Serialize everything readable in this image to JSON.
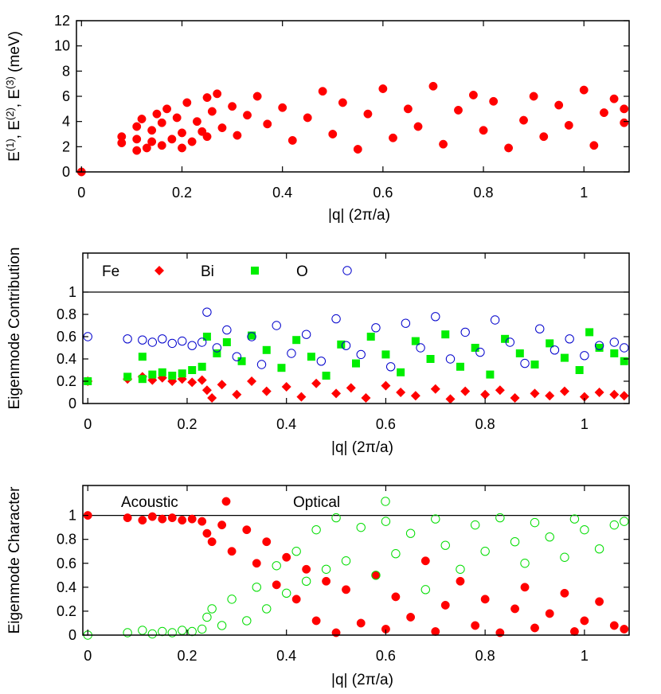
{
  "figure": {
    "background": "#ffffff"
  },
  "chart_data": [
    {
      "type": "scatter",
      "title": "",
      "xlabel": "|q| (2π/a)",
      "ylabel": "E(1), E(2), E(3) (meV)",
      "xlim": [
        -0.01,
        1.09
      ],
      "ylim": [
        0,
        12
      ],
      "x_ticks": [
        0,
        0.2,
        0.4,
        0.6,
        0.8,
        1
      ],
      "x_tick_labels": [
        "0",
        "0.2",
        "0.4",
        "0.6",
        "0.8",
        "1"
      ],
      "y_ticks": [
        0,
        2,
        4,
        6,
        8,
        10,
        12
      ],
      "y_tick_labels": [
        "0",
        "2",
        "4",
        "6",
        "8",
        "10",
        "12"
      ],
      "grid": false,
      "legend": "none",
      "series": [
        {
          "color": "#ff0000",
          "marker": "filled-circle",
          "x": [
            0,
            0.08,
            0.08,
            0.11,
            0.11,
            0.11,
            0.12,
            0.13,
            0.14,
            0.14,
            0.15,
            0.16,
            0.16,
            0.17,
            0.18,
            0.19,
            0.2,
            0.2,
            0.21,
            0.22,
            0.23,
            0.24,
            0.25,
            0.25,
            0.26,
            0.27,
            0.28,
            0.3,
            0.31,
            0.33,
            0.35,
            0.37,
            0.4,
            0.42,
            0.45,
            0.48,
            0.5,
            0.52,
            0.55,
            0.57,
            0.6,
            0.62,
            0.65,
            0.67,
            0.7,
            0.72,
            0.75,
            0.78,
            0.8,
            0.82,
            0.85,
            0.88,
            0.9,
            0.92,
            0.95,
            0.97,
            1.0,
            1.02,
            1.04,
            1.06,
            1.08,
            1.08
          ],
          "y": [
            0,
            2.3,
            2.8,
            1.7,
            2.6,
            3.6,
            4.2,
            1.9,
            2.4,
            3.3,
            4.6,
            2.1,
            3.9,
            5.0,
            2.6,
            4.3,
            1.9,
            3.1,
            5.5,
            2.4,
            4.0,
            3.2,
            5.9,
            2.8,
            4.8,
            6.2,
            3.5,
            5.2,
            2.9,
            4.5,
            6.0,
            3.8,
            5.1,
            2.5,
            4.3,
            6.4,
            3.0,
            5.5,
            1.8,
            4.6,
            6.6,
            2.7,
            5.0,
            3.6,
            6.8,
            2.2,
            4.9,
            6.1,
            3.3,
            5.6,
            1.9,
            4.1,
            6.0,
            2.8,
            5.3,
            3.7,
            6.5,
            2.1,
            4.7,
            5.8,
            3.9,
            5.0
          ]
        }
      ]
    },
    {
      "type": "scatter",
      "title": "",
      "xlabel": "|q| (2π/a)",
      "ylabel": "Eigenmode Contribution",
      "xlim": [
        -0.01,
        1.09
      ],
      "ylim": [
        0,
        1.35
      ],
      "x_ticks": [
        0,
        0.2,
        0.4,
        0.6,
        0.8,
        1
      ],
      "x_tick_labels": [
        "0",
        "0.2",
        "0.4",
        "0.6",
        "0.8",
        "1"
      ],
      "y_ticks": [
        0,
        0.2,
        0.4,
        0.6,
        0.8,
        1
      ],
      "y_tick_labels": [
        "0",
        "0.2",
        "0.4",
        "0.6",
        "0.8",
        "1"
      ],
      "reference_line_y": 1,
      "grid": false,
      "legend": "top-inside",
      "series": [
        {
          "name": "Fe",
          "color": "#ff0000",
          "marker": "filled-diamond",
          "x": [
            0,
            0.08,
            0.11,
            0.13,
            0.15,
            0.17,
            0.19,
            0.21,
            0.23,
            0.24,
            0.25,
            0.27,
            0.3,
            0.33,
            0.36,
            0.4,
            0.43,
            0.46,
            0.5,
            0.53,
            0.56,
            0.6,
            0.63,
            0.66,
            0.7,
            0.73,
            0.76,
            0.8,
            0.83,
            0.86,
            0.9,
            0.93,
            0.96,
            1.0,
            1.03,
            1.06,
            1.08
          ],
          "y": [
            0.2,
            0.22,
            0.24,
            0.21,
            0.23,
            0.2,
            0.22,
            0.19,
            0.21,
            0.12,
            0.05,
            0.17,
            0.08,
            0.2,
            0.11,
            0.15,
            0.06,
            0.18,
            0.09,
            0.14,
            0.05,
            0.16,
            0.1,
            0.07,
            0.13,
            0.04,
            0.11,
            0.08,
            0.12,
            0.05,
            0.09,
            0.07,
            0.11,
            0.06,
            0.1,
            0.08,
            0.07
          ]
        },
        {
          "name": "Bi",
          "color": "#00ee00",
          "marker": "filled-square",
          "x": [
            0,
            0.08,
            0.11,
            0.11,
            0.13,
            0.15,
            0.17,
            0.19,
            0.21,
            0.23,
            0.24,
            0.26,
            0.28,
            0.31,
            0.33,
            0.36,
            0.39,
            0.42,
            0.45,
            0.48,
            0.51,
            0.54,
            0.57,
            0.6,
            0.63,
            0.66,
            0.69,
            0.72,
            0.75,
            0.78,
            0.81,
            0.84,
            0.87,
            0.9,
            0.93,
            0.96,
            0.99,
            1.01,
            1.03,
            1.06,
            1.08
          ],
          "y": [
            0.2,
            0.24,
            0.22,
            0.42,
            0.26,
            0.28,
            0.25,
            0.27,
            0.3,
            0.33,
            0.6,
            0.45,
            0.55,
            0.38,
            0.61,
            0.48,
            0.32,
            0.57,
            0.42,
            0.25,
            0.53,
            0.36,
            0.6,
            0.44,
            0.28,
            0.56,
            0.4,
            0.62,
            0.33,
            0.5,
            0.26,
            0.58,
            0.45,
            0.35,
            0.54,
            0.41,
            0.3,
            0.64,
            0.5,
            0.45,
            0.38
          ]
        },
        {
          "name": "O",
          "color": "#0000cc",
          "marker": "open-circle",
          "x": [
            0,
            0.08,
            0.11,
            0.13,
            0.15,
            0.17,
            0.19,
            0.21,
            0.23,
            0.24,
            0.26,
            0.28,
            0.3,
            0.33,
            0.35,
            0.38,
            0.41,
            0.44,
            0.47,
            0.5,
            0.52,
            0.55,
            0.58,
            0.61,
            0.64,
            0.67,
            0.7,
            0.73,
            0.76,
            0.79,
            0.82,
            0.85,
            0.88,
            0.91,
            0.94,
            0.97,
            1.0,
            1.03,
            1.06,
            1.08
          ],
          "y": [
            0.6,
            0.58,
            0.57,
            0.55,
            0.58,
            0.54,
            0.56,
            0.52,
            0.55,
            0.82,
            0.5,
            0.66,
            0.42,
            0.6,
            0.35,
            0.7,
            0.45,
            0.62,
            0.38,
            0.76,
            0.52,
            0.44,
            0.68,
            0.33,
            0.72,
            0.5,
            0.78,
            0.4,
            0.64,
            0.46,
            0.75,
            0.55,
            0.36,
            0.67,
            0.48,
            0.58,
            0.43,
            0.52,
            0.55,
            0.5
          ]
        }
      ]
    },
    {
      "type": "scatter",
      "title": "",
      "xlabel": "|q| (2π/a)",
      "ylabel": "Eigenmode Character",
      "xlim": [
        -0.01,
        1.09
      ],
      "ylim": [
        0,
        1.25
      ],
      "x_ticks": [
        0,
        0.2,
        0.4,
        0.6,
        0.8,
        1
      ],
      "x_tick_labels": [
        "0",
        "0.2",
        "0.4",
        "0.6",
        "0.8",
        "1"
      ],
      "y_ticks": [
        0,
        0.2,
        0.4,
        0.6,
        0.8,
        1
      ],
      "y_tick_labels": [
        "0",
        "0.2",
        "0.4",
        "0.6",
        "0.8",
        "1"
      ],
      "reference_line_y": 1,
      "grid": false,
      "legend": "top-inside",
      "series": [
        {
          "name": "Acoustic",
          "color": "#ff0000",
          "marker": "filled-circle",
          "x": [
            0,
            0.08,
            0.11,
            0.13,
            0.15,
            0.17,
            0.19,
            0.21,
            0.23,
            0.24,
            0.25,
            0.27,
            0.29,
            0.32,
            0.34,
            0.36,
            0.38,
            0.4,
            0.42,
            0.44,
            0.46,
            0.48,
            0.5,
            0.52,
            0.55,
            0.58,
            0.6,
            0.62,
            0.65,
            0.68,
            0.7,
            0.72,
            0.75,
            0.78,
            0.8,
            0.83,
            0.86,
            0.88,
            0.9,
            0.93,
            0.96,
            0.98,
            1.0,
            1.03,
            1.06,
            1.08
          ],
          "y": [
            1.0,
            0.98,
            0.96,
            0.99,
            0.97,
            0.98,
            0.96,
            0.97,
            0.95,
            0.85,
            0.78,
            0.92,
            0.7,
            0.88,
            0.6,
            0.78,
            0.42,
            0.65,
            0.3,
            0.55,
            0.12,
            0.45,
            0.02,
            0.38,
            0.1,
            0.5,
            0.05,
            0.32,
            0.15,
            0.62,
            0.03,
            0.25,
            0.45,
            0.08,
            0.3,
            0.02,
            0.22,
            0.4,
            0.06,
            0.18,
            0.35,
            0.03,
            0.12,
            0.28,
            0.08,
            0.05
          ]
        },
        {
          "name": "Optical",
          "color": "#00dd00",
          "marker": "open-circle",
          "x": [
            0,
            0.08,
            0.11,
            0.13,
            0.15,
            0.17,
            0.19,
            0.21,
            0.23,
            0.24,
            0.25,
            0.27,
            0.29,
            0.32,
            0.34,
            0.36,
            0.38,
            0.4,
            0.42,
            0.44,
            0.46,
            0.48,
            0.5,
            0.52,
            0.55,
            0.58,
            0.6,
            0.62,
            0.65,
            0.68,
            0.7,
            0.72,
            0.75,
            0.78,
            0.8,
            0.83,
            0.86,
            0.88,
            0.9,
            0.93,
            0.96,
            0.98,
            1.0,
            1.03,
            1.06,
            1.08
          ],
          "y": [
            0.0,
            0.02,
            0.04,
            0.01,
            0.03,
            0.02,
            0.04,
            0.03,
            0.05,
            0.15,
            0.22,
            0.08,
            0.3,
            0.12,
            0.4,
            0.22,
            0.58,
            0.35,
            0.7,
            0.45,
            0.88,
            0.55,
            0.98,
            0.62,
            0.9,
            0.5,
            0.95,
            0.68,
            0.85,
            0.38,
            0.97,
            0.75,
            0.55,
            0.92,
            0.7,
            0.98,
            0.78,
            0.6,
            0.94,
            0.82,
            0.65,
            0.97,
            0.88,
            0.72,
            0.92,
            0.95
          ]
        }
      ]
    }
  ]
}
